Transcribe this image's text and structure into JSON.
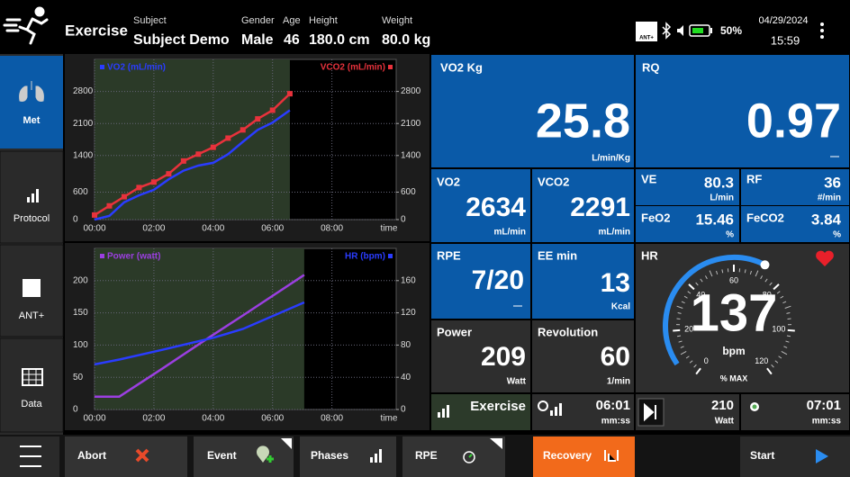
{
  "header": {
    "app_title": "Exercise",
    "subject": {
      "label": "Subject",
      "value": "Subject Demo"
    },
    "gender": {
      "label": "Gender",
      "value": "Male"
    },
    "age": {
      "label": "Age",
      "value": 46
    },
    "height": {
      "label": "Height",
      "value": "180.0 cm"
    },
    "weight": {
      "label": "Weight",
      "value": "80.0 kg"
    },
    "status": {
      "ant_icon": "ANT+",
      "battery": "50%",
      "date": "04/29/2024",
      "time": "15:59"
    }
  },
  "sidebar": {
    "items": [
      "Met",
      "Protocol",
      "ANT+",
      "Data"
    ],
    "active": "Met"
  },
  "chart_data": [
    {
      "type": "line",
      "xlabel": "time",
      "x": [
        0,
        30,
        60,
        90,
        120,
        150,
        180,
        210,
        240,
        270,
        300,
        330,
        360,
        395
      ],
      "series": [
        {
          "name": "VO2 (mL/min)",
          "color": "#2a3cff",
          "values": [
            0,
            80,
            380,
            530,
            650,
            880,
            1070,
            1180,
            1240,
            1430,
            1700,
            1960,
            2120,
            2390
          ]
        },
        {
          "name": "VCO2 (mL/min)",
          "color": "#e8323c",
          "marker": "square",
          "axis": "y2",
          "values": [
            100,
            300,
            500,
            700,
            820,
            1000,
            1280,
            1430,
            1580,
            1780,
            1960,
            2200,
            2390,
            2750
          ]
        }
      ],
      "xlim": [
        0,
        610
      ],
      "xticks": [
        {
          "value": 0,
          "label": "00:00"
        },
        {
          "value": 120,
          "label": "02:00"
        },
        {
          "value": 240,
          "label": "04:00"
        },
        {
          "value": 360,
          "label": "06:00"
        },
        {
          "value": 480,
          "label": "08:00"
        }
      ],
      "ylim": [
        0,
        3500
      ],
      "yticks": [
        0,
        600,
        1400,
        2100,
        2800
      ],
      "y2lim": [
        0,
        3500
      ],
      "y2ticks": [
        0,
        600,
        1400,
        2100,
        2800
      ],
      "grid": true
    },
    {
      "type": "line",
      "xlabel": "time",
      "x": [
        0,
        50,
        136,
        240,
        300,
        424
      ],
      "series": [
        {
          "name": "Power (watt)",
          "color": "#9b3fe0",
          "values": [
            20,
            20,
            63,
            116,
            146,
            209
          ]
        },
        {
          "name": "HR (bpm)",
          "color": "#2a3cff",
          "axis": "y2",
          "values": [
            56,
            62,
            74,
            89,
            100,
            133
          ]
        }
      ],
      "xlim": [
        0,
        610
      ],
      "xticks": [
        {
          "value": 0,
          "label": "00:00"
        },
        {
          "value": 120,
          "label": "02:00"
        },
        {
          "value": 240,
          "label": "04:00"
        },
        {
          "value": 360,
          "label": "06:00"
        },
        {
          "value": 480,
          "label": "08:00"
        }
      ],
      "ylim": [
        0,
        250
      ],
      "yticks": [
        0,
        50,
        100,
        150,
        200
      ],
      "y2lim": [
        0,
        200
      ],
      "y2ticks": [
        0,
        40,
        80,
        120,
        160
      ],
      "grid": true
    }
  ],
  "tiles": {
    "vo2kg": {
      "label": "VO2 Kg",
      "value": 25.8,
      "unit": "L/min/Kg"
    },
    "rq": {
      "label": "RQ",
      "value": 0.97,
      "unit": "—"
    },
    "vo2": {
      "label": "VO2",
      "value": 2634,
      "unit": "mL/min"
    },
    "vco2": {
      "label": "VCO2",
      "value": 2291,
      "unit": "mL/min"
    },
    "ve": {
      "label": "VE",
      "value": 80.3,
      "unit": "L/min"
    },
    "rf": {
      "label": "RF",
      "value": 36,
      "unit": "#/min"
    },
    "feo2": {
      "label": "FeO2",
      "value": 15.46,
      "unit": "%"
    },
    "feco2": {
      "label": "FeCO2",
      "value": 3.84,
      "unit": "%"
    },
    "rpe": {
      "label": "RPE",
      "value": "7/20",
      "unit": "—"
    },
    "ee": {
      "label": "EE min",
      "value": 13,
      "unit": "Kcal"
    },
    "power": {
      "label": "Power",
      "value": 209,
      "unit": "Watt"
    },
    "revolution": {
      "label": "Revolution",
      "value": 60,
      "unit": "1/min"
    },
    "hr": {
      "label": "HR",
      "value": 137,
      "unit": "bpm",
      "scale_label": "% MAX",
      "gauge_ticks": [
        0,
        20,
        40,
        60,
        80,
        100,
        120
      ]
    },
    "phase": {
      "label": "Exercise"
    },
    "phase_time": {
      "value": "06:01",
      "unit": "mm:ss"
    },
    "target": {
      "value": 210,
      "unit": "Watt"
    },
    "total_time": {
      "value": "07:01",
      "unit": "mm:ss"
    }
  },
  "toolbar": {
    "buttons": [
      "Abort",
      "Event",
      "Phases",
      "RPE",
      "Recovery",
      "Start"
    ]
  }
}
